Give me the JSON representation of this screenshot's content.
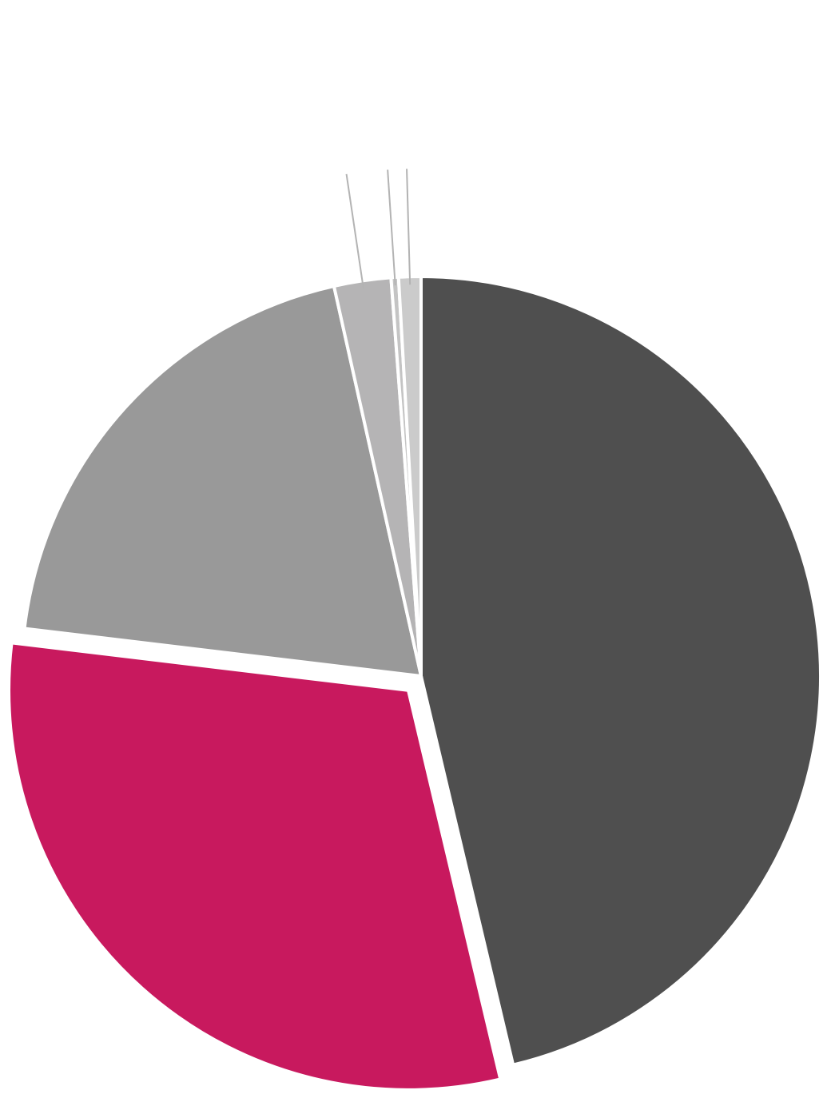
{
  "chart_data": {
    "type": "pie",
    "title": "",
    "start_angle_deg": 0,
    "direction": "clockwise",
    "data_labels_visible": false,
    "legend": "none",
    "slices": [
      {
        "value": 46.3,
        "color": "#4f4f4f",
        "exploded": false,
        "leader_line": false
      },
      {
        "value": 30.6,
        "color": "#c8195e",
        "exploded": true,
        "leader_line": false
      },
      {
        "value": 19.6,
        "color": "#999999",
        "exploded": false,
        "leader_line": false
      },
      {
        "value": 2.3,
        "color": "#b5b4b5",
        "exploded": false,
        "leader_line": true
      },
      {
        "value": 0.3,
        "color": "#c4c4c4",
        "exploded": false,
        "leader_line": true
      },
      {
        "value": 0.9,
        "color": "#cbcbcb",
        "exploded": false,
        "leader_line": true
      }
    ]
  }
}
